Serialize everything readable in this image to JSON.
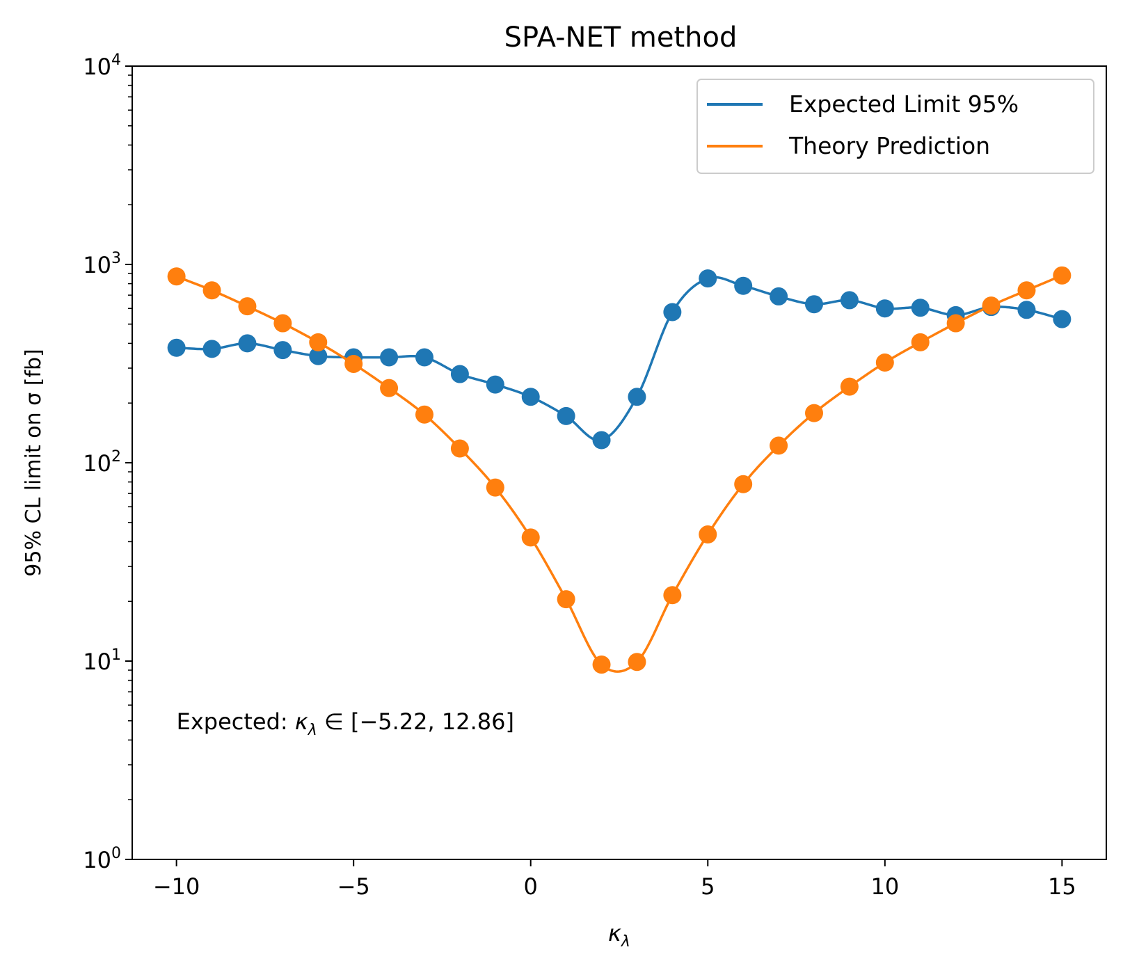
{
  "chart_data": {
    "type": "line",
    "title": "SPA-NET method",
    "xlabel": "κλ",
    "ylabel": "95% CL limit on σ [fb]",
    "xlim": [
      -11.25,
      16.25
    ],
    "ylim": [
      1,
      10000
    ],
    "yscale": "log",
    "grid": false,
    "legend_position": "upper right",
    "x_ticks": [
      {
        "value": -10,
        "label": "−10"
      },
      {
        "value": -5,
        "label": "−5"
      },
      {
        "value": 0,
        "label": "0"
      },
      {
        "value": 5,
        "label": "5"
      },
      {
        "value": 10,
        "label": "10"
      },
      {
        "value": 15,
        "label": "15"
      }
    ],
    "y_ticks": [
      {
        "value": 1,
        "base": "10",
        "exp": "0"
      },
      {
        "value": 10,
        "base": "10",
        "exp": "1"
      },
      {
        "value": 100,
        "base": "10",
        "exp": "2"
      },
      {
        "value": 1000,
        "base": "10",
        "exp": "3"
      },
      {
        "value": 10000,
        "base": "10",
        "exp": "4"
      }
    ],
    "x": [
      -10,
      -9,
      -8,
      -7,
      -6,
      -5,
      -4,
      -3,
      -2,
      -1,
      0,
      1,
      2,
      3,
      4,
      5,
      6,
      7,
      8,
      9,
      10,
      11,
      12,
      13,
      14,
      15
    ],
    "series": [
      {
        "name": "Expected Limit 95%",
        "color": "#1f77b4",
        "values": [
          380,
          375,
          400,
          370,
          345,
          340,
          340,
          340,
          280,
          248,
          215,
          172,
          130,
          215,
          575,
          850,
          780,
          690,
          630,
          660,
          600,
          605,
          555,
          610,
          590,
          530
        ]
      },
      {
        "name": "Theory Prediction",
        "color": "#ff7f0e",
        "values": [
          870,
          740,
          615,
          505,
          405,
          315,
          238,
          175,
          118,
          75,
          42,
          20.5,
          9.6,
          9.9,
          21.5,
          43.5,
          78,
          122,
          178,
          242,
          320,
          405,
          505,
          620,
          740,
          880
        ]
      }
    ],
    "annotation": {
      "prefix": "Expected: ",
      "symbol": "κ",
      "subscript": "λ",
      "suffix": " ∈ [−5.22, 12.86]",
      "x": -10,
      "y": 5
    }
  }
}
